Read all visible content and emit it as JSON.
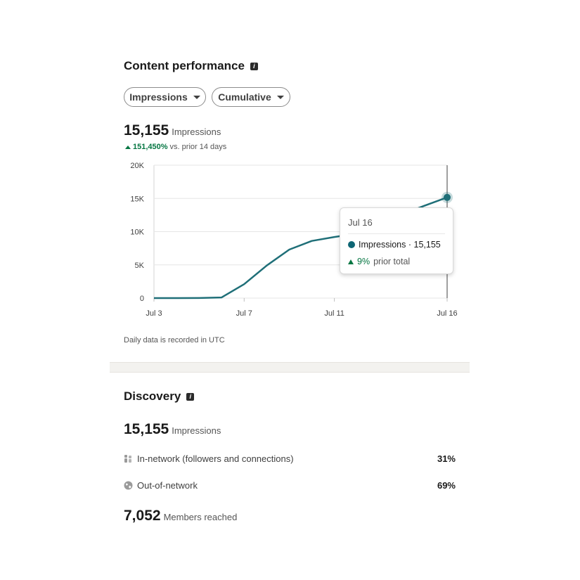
{
  "content_performance": {
    "title": "Content performance",
    "filters": [
      {
        "label": "Impressions"
      },
      {
        "label": "Cumulative"
      }
    ],
    "metric_value": "15,155",
    "metric_unit": "Impressions",
    "change_pct": "151,450%",
    "change_text": "vs. prior 14 days",
    "footnote": "Daily data is recorded in UTC",
    "tooltip": {
      "date": "Jul 16",
      "series_line": "Impressions · 15,155",
      "change_pct": "9%",
      "change_text": "prior total"
    }
  },
  "chart_data": {
    "type": "line",
    "series": [
      {
        "name": "Impressions",
        "x": [
          "Jul 3",
          "Jul 4",
          "Jul 5",
          "Jul 6",
          "Jul 7",
          "Jul 8",
          "Jul 9",
          "Jul 10",
          "Jul 11",
          "Jul 12",
          "Jul 13",
          "Jul 14",
          "Jul 15",
          "Jul 16"
        ],
        "values": [
          0,
          0,
          10,
          100,
          2100,
          4900,
          7300,
          8600,
          9200,
          9700,
          11000,
          12600,
          13900,
          15155
        ]
      }
    ],
    "y_ticks": [
      "0",
      "5K",
      "10K",
      "15K",
      "20K"
    ],
    "ylim": [
      0,
      20000
    ],
    "x_tick_labels": [
      "Jul 3",
      "Jul 7",
      "Jul 11",
      "Jul 16"
    ],
    "grid": true,
    "color": "#1f6f78",
    "highlight": "Jul 16"
  },
  "discovery": {
    "title": "Discovery",
    "impressions_value": "15,155",
    "impressions_unit": "Impressions",
    "rows": [
      {
        "label": "In-network (followers and connections)",
        "value": "31%",
        "icon": "people-icon"
      },
      {
        "label": "Out-of-network",
        "value": "69%",
        "icon": "globe-icon"
      }
    ],
    "members_value": "7,052",
    "members_unit": "Members reached"
  }
}
